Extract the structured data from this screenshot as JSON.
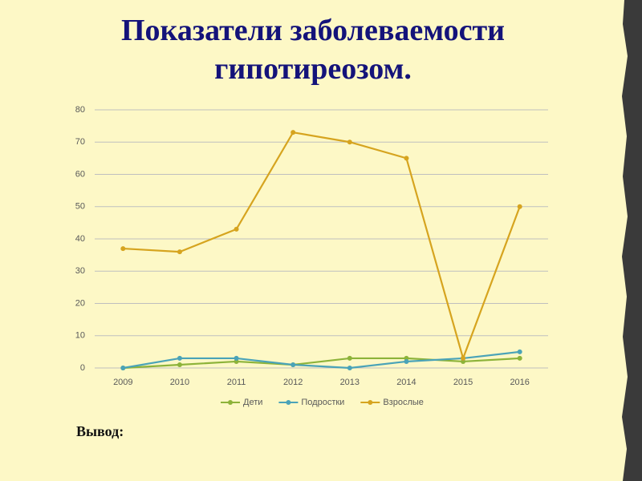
{
  "chart_data": {
    "type": "line",
    "title": "Показатели заболеваемости гипотиреозом.",
    "categories": [
      "2009",
      "2010",
      "2011",
      "2012",
      "2013",
      "2014",
      "2015",
      "2016"
    ],
    "series": [
      {
        "name": "Дети",
        "color": "#8db33a",
        "values": [
          0,
          1,
          2,
          1,
          3,
          3,
          2,
          3
        ]
      },
      {
        "name": "Подростки",
        "color": "#4aa3b8",
        "values": [
          0,
          3,
          3,
          1,
          0,
          2,
          3,
          5
        ]
      },
      {
        "name": "Взрослые",
        "color": "#d6a41f",
        "values": [
          37,
          36,
          43,
          73,
          70,
          65,
          3,
          50
        ]
      }
    ],
    "ylim": [
      0,
      80
    ],
    "yticks": [
      0,
      10,
      20,
      30,
      40,
      50,
      60,
      70,
      80
    ],
    "grid": true,
    "legend": "bottom"
  },
  "conclusion": "Вывод:"
}
